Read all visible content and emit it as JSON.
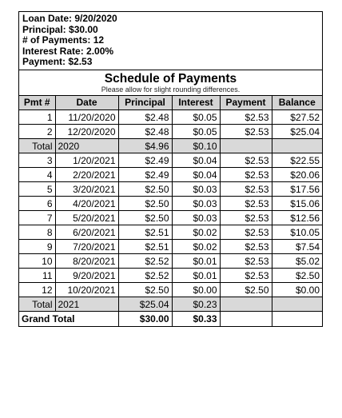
{
  "summary": {
    "loan_date": "Loan Date: 9/20/2020",
    "principal": "Principal: $30.00",
    "num_payments": "# of Payments: 12",
    "interest_rate": "Interest Rate: 2.00%",
    "payment": "Payment: $2.53"
  },
  "schedule": {
    "title": "Schedule of Payments",
    "note": "Please allow for slight rounding differences."
  },
  "columns": [
    "Pmt #",
    "Date",
    "Principal",
    "Interest",
    "Payment",
    "Balance"
  ],
  "rows": [
    {
      "type": "payment",
      "cells": [
        "1",
        "11/20/2020",
        "$2.48",
        "$0.05",
        "$2.53",
        "$27.52"
      ]
    },
    {
      "type": "payment",
      "cells": [
        "2",
        "12/20/2020",
        "$2.48",
        "$0.05",
        "$2.53",
        "$25.04"
      ]
    },
    {
      "type": "total",
      "label": "Total",
      "year": "2020",
      "principal": "$4.96",
      "interest": "$0.10"
    },
    {
      "type": "payment",
      "cells": [
        "3",
        "1/20/2021",
        "$2.49",
        "$0.04",
        "$2.53",
        "$22.55"
      ]
    },
    {
      "type": "payment",
      "cells": [
        "4",
        "2/20/2021",
        "$2.49",
        "$0.04",
        "$2.53",
        "$20.06"
      ]
    },
    {
      "type": "payment",
      "cells": [
        "5",
        "3/20/2021",
        "$2.50",
        "$0.03",
        "$2.53",
        "$17.56"
      ]
    },
    {
      "type": "payment",
      "cells": [
        "6",
        "4/20/2021",
        "$2.50",
        "$0.03",
        "$2.53",
        "$15.06"
      ]
    },
    {
      "type": "payment",
      "cells": [
        "7",
        "5/20/2021",
        "$2.50",
        "$0.03",
        "$2.53",
        "$12.56"
      ]
    },
    {
      "type": "payment",
      "cells": [
        "8",
        "6/20/2021",
        "$2.51",
        "$0.02",
        "$2.53",
        "$10.05"
      ]
    },
    {
      "type": "payment",
      "cells": [
        "9",
        "7/20/2021",
        "$2.51",
        "$0.02",
        "$2.53",
        "$7.54"
      ]
    },
    {
      "type": "payment",
      "cells": [
        "10",
        "8/20/2021",
        "$2.52",
        "$0.01",
        "$2.53",
        "$5.02"
      ]
    },
    {
      "type": "payment",
      "cells": [
        "11",
        "9/20/2021",
        "$2.52",
        "$0.01",
        "$2.53",
        "$2.50"
      ]
    },
    {
      "type": "payment",
      "cells": [
        "12",
        "10/20/2021",
        "$2.50",
        "$0.00",
        "$2.50",
        "$0.00"
      ]
    },
    {
      "type": "total",
      "label": "Total",
      "year": "2021",
      "principal": "$25.04",
      "interest": "$0.23"
    },
    {
      "type": "grand",
      "label": "Grand Total",
      "principal": "$30.00",
      "interest": "$0.33"
    }
  ]
}
